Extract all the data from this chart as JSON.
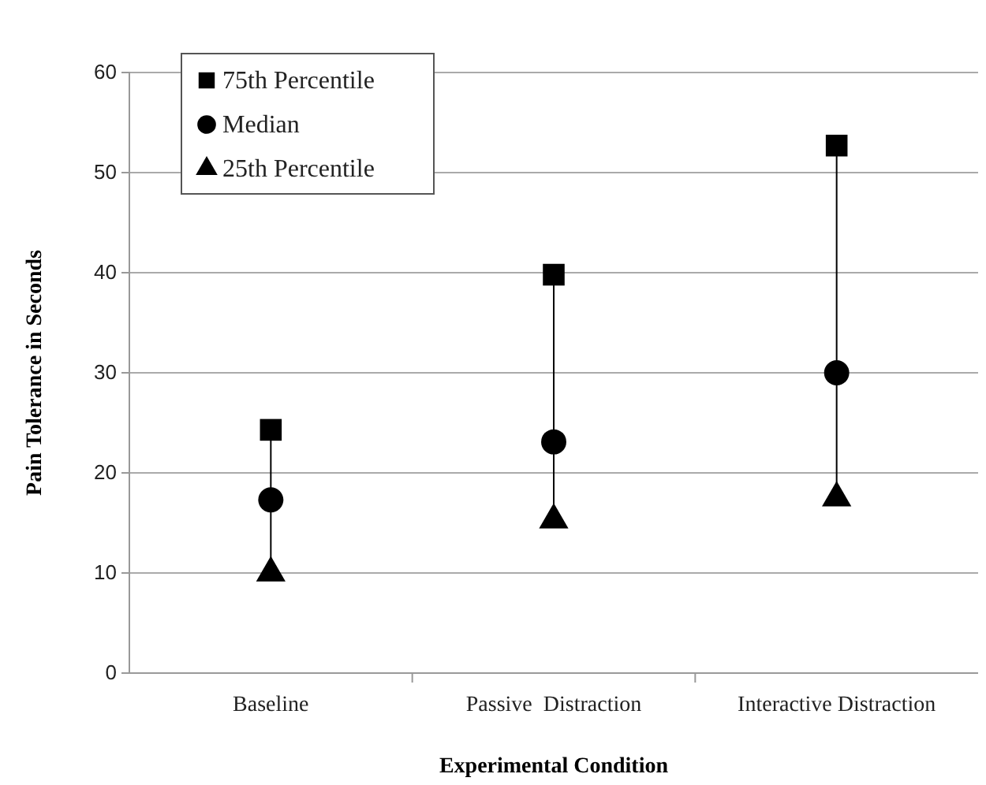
{
  "chart_data": {
    "type": "scatter",
    "xlabel": "Experimental Condition",
    "ylabel": "Pain Tolerance in Seconds",
    "categories": [
      "Baseline",
      "Passive  Distraction",
      "Interactive Distraction"
    ],
    "series": [
      {
        "name": "75th Percentile",
        "color": "#000000",
        "marker": "square",
        "values": [
          24.3,
          39.8,
          52.7
        ]
      },
      {
        "name": "Median",
        "color": "#000000",
        "marker": "circle",
        "values": [
          17.3,
          23.1,
          30.0
        ]
      },
      {
        "name": "25th Percentile",
        "color": "#000000",
        "marker": "triangle",
        "values": [
          10.0,
          15.3,
          17.5
        ]
      }
    ],
    "ylim": [
      0,
      60
    ],
    "yticks": [
      0,
      10,
      20,
      30,
      40,
      50,
      60
    ],
    "grid": "y",
    "legend": "top left"
  }
}
